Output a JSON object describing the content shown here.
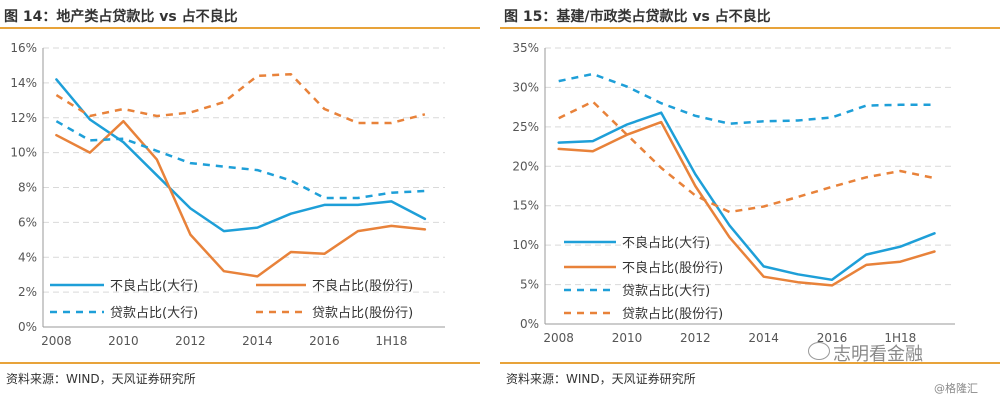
{
  "brand": {
    "primary_blue": "#1E9FD8",
    "primary_orange": "#E8823A",
    "accent_rule": "#E8A33A"
  },
  "chart_data": [
    {
      "type": "line",
      "title": "图 14：地产类占贷款比 vs 占不良比",
      "source": "资料来源：WIND，天风证券研究所",
      "x": [
        2008,
        2009,
        2010,
        2011,
        2012,
        2013,
        2014,
        2015,
        2016,
        2017,
        2018,
        2019
      ],
      "x_tick_labels": [
        "2008",
        "2010",
        "2012",
        "2014",
        "2016",
        "1H18"
      ],
      "x_tick_values": [
        2008,
        2010,
        2012,
        2014,
        2016,
        2018
      ],
      "xlim": [
        2007.6,
        2019.6
      ],
      "ylim": [
        0,
        16
      ],
      "y_ticks": [
        0,
        2,
        4,
        6,
        8,
        10,
        12,
        14,
        16
      ],
      "y_tick_labels": [
        "0%",
        "2%",
        "4%",
        "6%",
        "8%",
        "10%",
        "12%",
        "14%",
        "16%"
      ],
      "grid": true,
      "legend_position": "bottom",
      "series": [
        {
          "name": "不良占比(大行)",
          "color": "#1E9FD8",
          "dash": false,
          "values": [
            14.2,
            11.9,
            10.6,
            8.7,
            6.8,
            5.5,
            5.7,
            6.5,
            7.0,
            7.0,
            7.2,
            6.2
          ]
        },
        {
          "name": "不良占比(股份行)",
          "color": "#E8823A",
          "dash": false,
          "values": [
            11.0,
            10.0,
            11.8,
            9.6,
            5.3,
            3.2,
            2.9,
            4.3,
            4.2,
            5.5,
            5.8,
            5.6
          ]
        },
        {
          "name": "贷款占比(大行)",
          "color": "#1E9FD8",
          "dash": true,
          "values": [
            11.8,
            10.7,
            10.8,
            10.1,
            9.4,
            9.2,
            9.0,
            8.4,
            7.4,
            7.4,
            7.7,
            7.8
          ]
        },
        {
          "name": "贷款占比(股份行)",
          "color": "#E8823A",
          "dash": true,
          "values": [
            13.3,
            12.1,
            12.5,
            12.1,
            12.3,
            12.9,
            14.4,
            14.5,
            12.5,
            11.7,
            11.7,
            12.2
          ]
        }
      ]
    },
    {
      "type": "line",
      "title": "图 15：基建/市政类占贷款比 vs 占不良比",
      "source": "资料来源：WIND，天风证券研究所",
      "x": [
        2008,
        2009,
        2010,
        2011,
        2012,
        2013,
        2014,
        2015,
        2016,
        2017,
        2018,
        2019
      ],
      "x_tick_labels": [
        "2008",
        "2010",
        "2012",
        "2014",
        "2016",
        "1H18"
      ],
      "x_tick_values": [
        2008,
        2010,
        2012,
        2014,
        2016,
        2018
      ],
      "xlim": [
        2007.6,
        2019.6
      ],
      "ylim": [
        0,
        35
      ],
      "y_ticks": [
        0,
        5,
        10,
        15,
        20,
        25,
        30,
        35
      ],
      "y_tick_labels": [
        "0%",
        "5%",
        "10%",
        "15%",
        "20%",
        "25%",
        "30%",
        "35%"
      ],
      "grid": true,
      "legend_position": "bottom-left",
      "series": [
        {
          "name": "不良占比(大行)",
          "color": "#1E9FD8",
          "dash": false,
          "values": [
            23.0,
            23.2,
            25.3,
            26.8,
            19.0,
            12.5,
            7.3,
            6.3,
            5.6,
            8.8,
            9.8,
            11.5
          ]
        },
        {
          "name": "不良占比(股份行)",
          "color": "#E8823A",
          "dash": false,
          "values": [
            22.2,
            21.9,
            24.0,
            25.6,
            17.5,
            11.0,
            6.0,
            5.3,
            4.9,
            7.5,
            7.9,
            9.2
          ]
        },
        {
          "name": "贷款占比(大行)",
          "color": "#1E9FD8",
          "dash": true,
          "values": [
            30.8,
            31.7,
            30.1,
            28.0,
            26.4,
            25.4,
            25.7,
            25.8,
            26.2,
            27.7,
            27.8,
            27.8
          ]
        },
        {
          "name": "贷款占比(股份行)",
          "color": "#E8823A",
          "dash": true,
          "values": [
            26.1,
            28.2,
            24.0,
            19.8,
            16.3,
            14.2,
            14.9,
            16.1,
            17.4,
            18.6,
            19.4,
            18.5
          ]
        }
      ]
    }
  ],
  "watermark": {
    "main": "志明看金融",
    "sub": "@格隆汇"
  }
}
